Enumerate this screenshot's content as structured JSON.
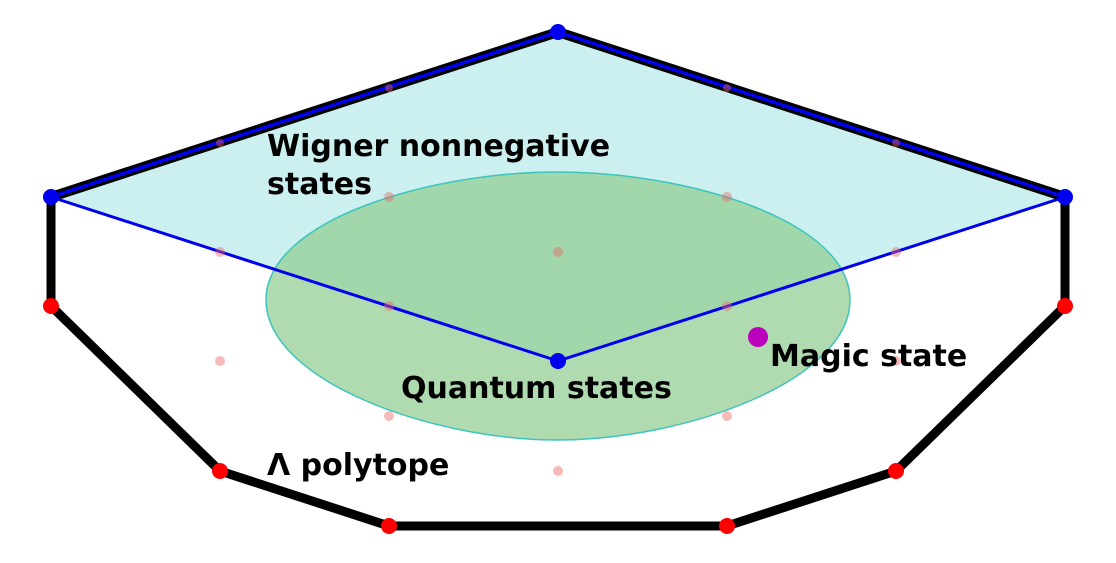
{
  "labels": {
    "wigner_line1": "Wigner nonnegative",
    "wigner_line2": "states",
    "quantum": "Quantum states",
    "magic": "Magic state",
    "lambda": "Λ polytope"
  },
  "colors": {
    "wigner_fill": "#cbf0ef",
    "quantum_fill": "#8fcc8f",
    "quantum_edge": "#3cc4bd",
    "wigner_edge": "#0000ee",
    "lambda_edge": "#000000",
    "lambda_vertex": "#ff0000",
    "wigner_vertex": "#0000ee",
    "magic_point": "#bb00bb",
    "interior_point": "#ee6666"
  }
}
